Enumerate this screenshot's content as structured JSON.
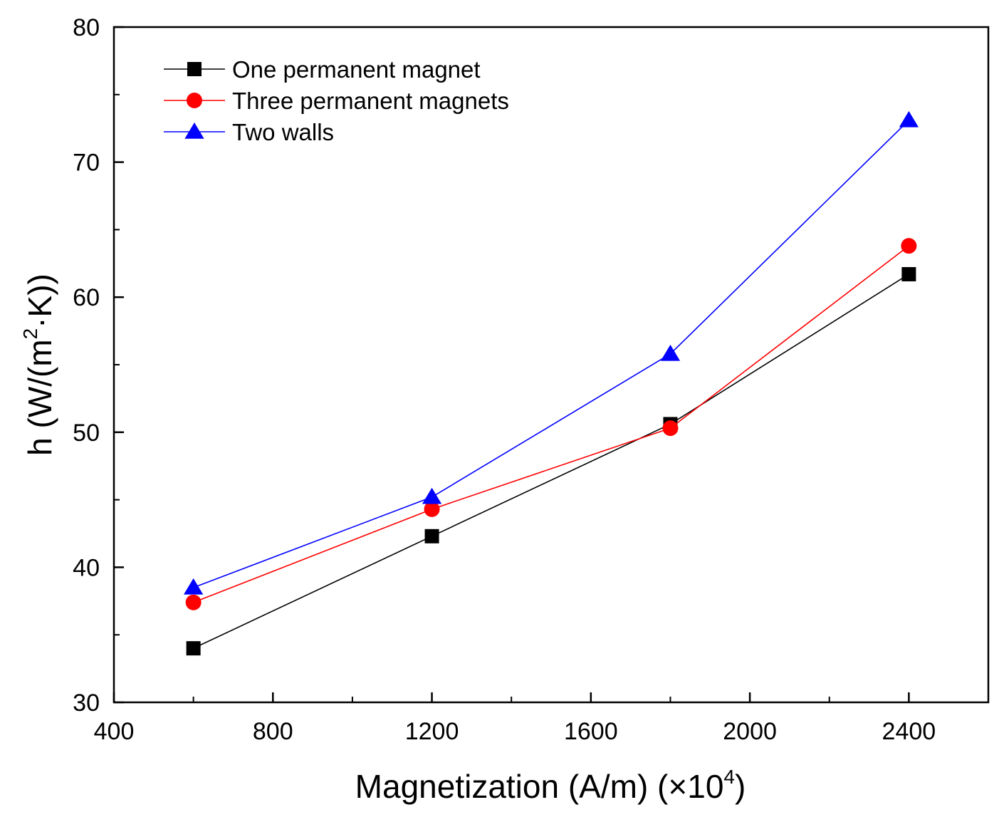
{
  "chart_data": {
    "type": "line",
    "xlabel": "Magnetization (A/m) (×10",
    "xlabel_sup": "4",
    "xlabel_end": ")",
    "ylabel": "h (W/(m",
    "ylabel_sup": "2",
    "ylabel_end": "·K))",
    "xlim": [
      400,
      2600
    ],
    "ylim": [
      30,
      80
    ],
    "xticks": [
      400,
      800,
      1200,
      1600,
      2000,
      2400
    ],
    "xtick_labels": [
      "400",
      "800",
      "1200",
      "1600",
      "2000",
      "2400"
    ],
    "yticks": [
      30,
      40,
      50,
      60,
      70,
      80
    ],
    "ytick_labels": [
      "30",
      "40",
      "50",
      "60",
      "70",
      "80"
    ],
    "grid": false,
    "legend_position": "top-left",
    "series": [
      {
        "name": "One permanent magnet",
        "color": "#000000",
        "marker": "square",
        "x": [
          600,
          1200,
          1800,
          2400
        ],
        "y": [
          34.0,
          42.3,
          50.6,
          61.7
        ]
      },
      {
        "name": "Three permanent magnets",
        "color": "#ff0000",
        "marker": "circle",
        "x": [
          600,
          1200,
          1800,
          2400
        ],
        "y": [
          37.4,
          44.3,
          50.3,
          63.8
        ]
      },
      {
        "name": "Two walls",
        "color": "#0000ff",
        "marker": "triangle",
        "x": [
          600,
          1200,
          1800,
          2400
        ],
        "y": [
          38.5,
          45.2,
          55.8,
          73.1
        ]
      }
    ]
  }
}
